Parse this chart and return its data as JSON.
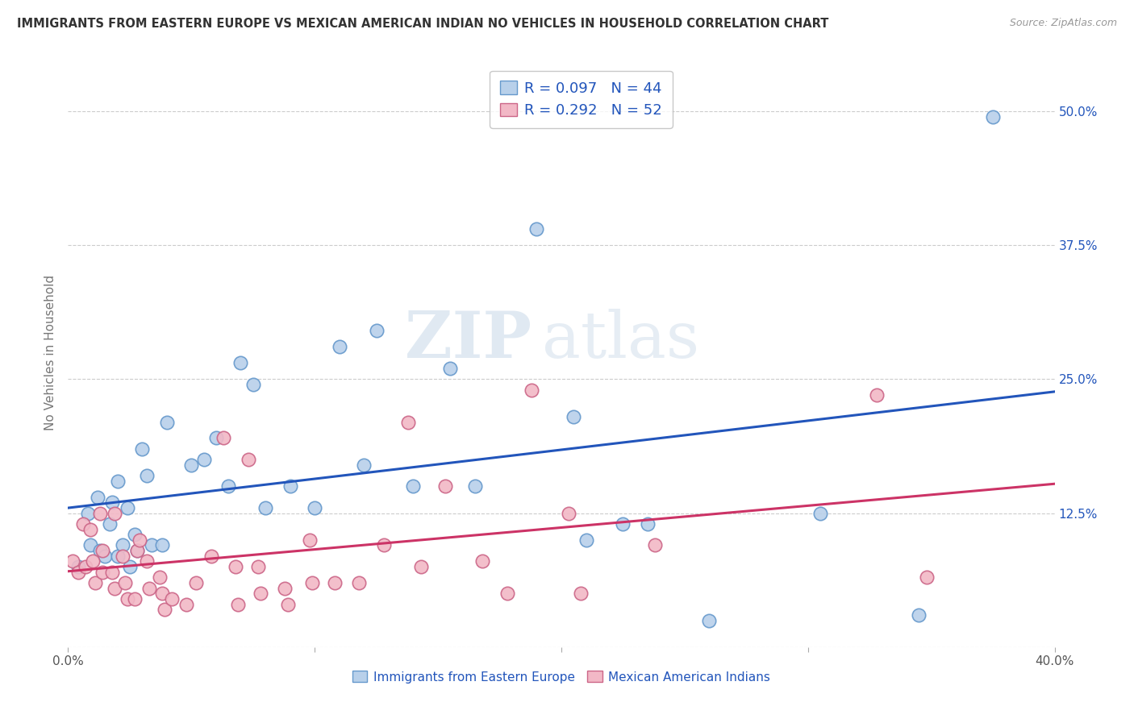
{
  "title": "IMMIGRANTS FROM EASTERN EUROPE VS MEXICAN AMERICAN INDIAN NO VEHICLES IN HOUSEHOLD CORRELATION CHART",
  "source": "Source: ZipAtlas.com",
  "ylabel": "No Vehicles in Household",
  "xlim": [
    0.0,
    0.4
  ],
  "ylim": [
    0.0,
    0.55
  ],
  "ytick_positions": [
    0.0,
    0.125,
    0.25,
    0.375,
    0.5
  ],
  "ytick_labels_right": [
    "",
    "12.5%",
    "25.0%",
    "37.5%",
    "50.0%"
  ],
  "blue_R": 0.097,
  "blue_N": 44,
  "pink_R": 0.292,
  "pink_N": 52,
  "blue_face_color": "#b8d0ea",
  "pink_face_color": "#f2b8c6",
  "blue_edge_color": "#6699cc",
  "pink_edge_color": "#cc6688",
  "blue_line_color": "#2255bb",
  "pink_line_color": "#cc3366",
  "legend_text_color": "#2255bb",
  "title_color": "#333333",
  "grid_color": "#cccccc",
  "background_color": "#ffffff",
  "watermark_zip": "ZIP",
  "watermark_atlas": "atlas",
  "blue_x": [
    0.004,
    0.008,
    0.009,
    0.012,
    0.013,
    0.015,
    0.017,
    0.018,
    0.02,
    0.02,
    0.022,
    0.024,
    0.025,
    0.027,
    0.028,
    0.03,
    0.032,
    0.034,
    0.038,
    0.04,
    0.05,
    0.055,
    0.06,
    0.065,
    0.07,
    0.075,
    0.08,
    0.09,
    0.1,
    0.11,
    0.12,
    0.125,
    0.14,
    0.155,
    0.165,
    0.19,
    0.205,
    0.21,
    0.225,
    0.235,
    0.26,
    0.305,
    0.345,
    0.375
  ],
  "blue_y": [
    0.075,
    0.125,
    0.095,
    0.14,
    0.09,
    0.085,
    0.115,
    0.135,
    0.155,
    0.085,
    0.095,
    0.13,
    0.075,
    0.105,
    0.09,
    0.185,
    0.16,
    0.095,
    0.095,
    0.21,
    0.17,
    0.175,
    0.195,
    0.15,
    0.265,
    0.245,
    0.13,
    0.15,
    0.13,
    0.28,
    0.17,
    0.295,
    0.15,
    0.26,
    0.15,
    0.39,
    0.215,
    0.1,
    0.115,
    0.115,
    0.025,
    0.125,
    0.03,
    0.495
  ],
  "pink_x": [
    0.002,
    0.004,
    0.006,
    0.007,
    0.009,
    0.01,
    0.011,
    0.013,
    0.014,
    0.014,
    0.018,
    0.019,
    0.019,
    0.022,
    0.023,
    0.024,
    0.027,
    0.028,
    0.029,
    0.032,
    0.033,
    0.037,
    0.038,
    0.039,
    0.042,
    0.048,
    0.052,
    0.058,
    0.063,
    0.068,
    0.069,
    0.073,
    0.077,
    0.078,
    0.088,
    0.089,
    0.098,
    0.099,
    0.108,
    0.118,
    0.128,
    0.138,
    0.143,
    0.153,
    0.168,
    0.178,
    0.188,
    0.203,
    0.208,
    0.238,
    0.328,
    0.348
  ],
  "pink_y": [
    0.08,
    0.07,
    0.115,
    0.075,
    0.11,
    0.08,
    0.06,
    0.125,
    0.07,
    0.09,
    0.07,
    0.055,
    0.125,
    0.085,
    0.06,
    0.045,
    0.045,
    0.09,
    0.1,
    0.08,
    0.055,
    0.065,
    0.05,
    0.035,
    0.045,
    0.04,
    0.06,
    0.085,
    0.195,
    0.075,
    0.04,
    0.175,
    0.075,
    0.05,
    0.055,
    0.04,
    0.1,
    0.06,
    0.06,
    0.06,
    0.095,
    0.21,
    0.075,
    0.15,
    0.08,
    0.05,
    0.24,
    0.125,
    0.05,
    0.095,
    0.235,
    0.065
  ]
}
